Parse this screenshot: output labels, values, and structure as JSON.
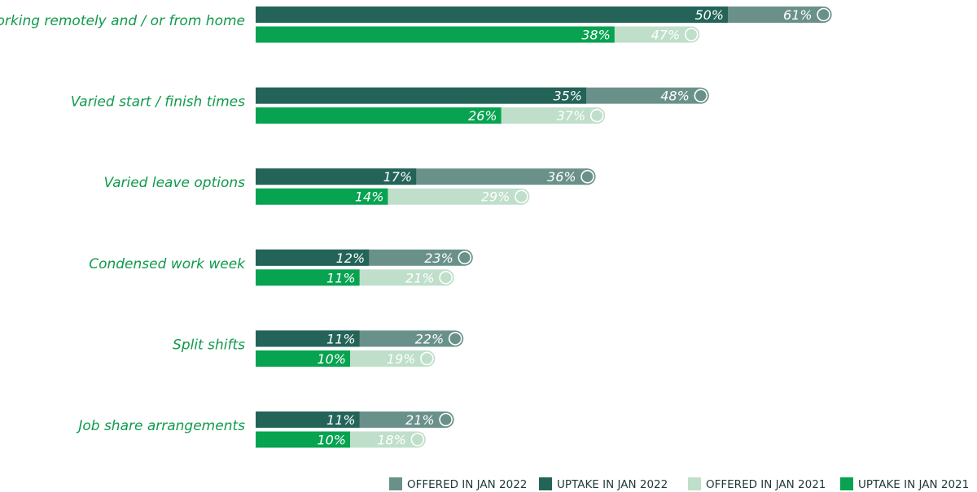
{
  "chart_data": {
    "type": "bar",
    "orientation": "horizontal",
    "categories": [
      "Working remotely and / or from home",
      "Varied start / finish times",
      "Varied leave options",
      "Condensed work week",
      "Split shifts",
      "Job share arrangements"
    ],
    "series": [
      {
        "name": "OFFERED IN JAN 2022",
        "color": "#6a9189",
        "values": [
          61,
          48,
          36,
          23,
          22,
          21
        ]
      },
      {
        "name": "UPTAKE IN JAN 2022",
        "color": "#236358",
        "values": [
          50,
          35,
          17,
          12,
          11,
          11
        ]
      },
      {
        "name": "OFFERED IN JAN 2021",
        "color": "#bfdfca",
        "values": [
          47,
          37,
          29,
          21,
          19,
          18
        ]
      },
      {
        "name": "UPTAKE IN JAN 2021",
        "color": "#07a350",
        "values": [
          38,
          26,
          14,
          11,
          10,
          10
        ]
      }
    ],
    "value_suffix": "%",
    "xlim": [
      0,
      100
    ],
    "grid": false,
    "legend_position": "bottom-right"
  }
}
